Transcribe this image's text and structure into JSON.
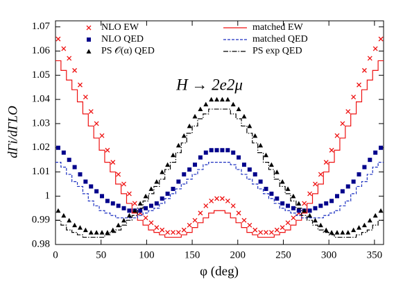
{
  "chart_data": {
    "type": "scatter-step",
    "annotation": "H → 2e2μ",
    "x_label": "φ (deg)",
    "y_label": "dΓi/dΓLO",
    "xlim": [
      0,
      360
    ],
    "ylim": [
      0.98,
      1.0725
    ],
    "xticks": [
      0,
      50,
      100,
      150,
      200,
      250,
      300,
      350
    ],
    "yticks": [
      0.98,
      0.99,
      1,
      1.01,
      1.02,
      1.03,
      1.04,
      1.05,
      1.06,
      1.07
    ],
    "x": [
      3,
      9,
      15,
      21,
      27,
      33,
      39,
      45,
      51,
      57,
      63,
      69,
      75,
      81,
      87,
      93,
      99,
      105,
      111,
      117,
      123,
      129,
      135,
      141,
      147,
      153,
      159,
      165,
      171,
      177,
      183,
      189,
      195,
      201,
      207,
      213,
      219,
      225,
      231,
      237,
      243,
      249,
      255,
      261,
      267,
      273,
      279,
      285,
      291,
      297,
      303,
      309,
      315,
      321,
      327,
      333,
      339,
      345,
      351,
      357
    ],
    "series": [
      {
        "name": "NLO EW",
        "color": "#ee1111",
        "marker": "x",
        "values": [
          1.065,
          1.061,
          1.057,
          1.052,
          1.046,
          1.041,
          1.035,
          1.03,
          1.025,
          1.019,
          1.014,
          1.009,
          1.005,
          1.001,
          0.997,
          0.993,
          0.991,
          0.989,
          0.987,
          0.986,
          0.985,
          0.985,
          0.985,
          0.986,
          0.988,
          0.99,
          0.993,
          0.996,
          0.998,
          0.999,
          0.999,
          0.998,
          0.996,
          0.993,
          0.99,
          0.988,
          0.986,
          0.985,
          0.985,
          0.985,
          0.986,
          0.987,
          0.989,
          0.991,
          0.993,
          0.997,
          1.001,
          1.005,
          1.009,
          1.014,
          1.019,
          1.025,
          1.03,
          1.035,
          1.041,
          1.046,
          1.052,
          1.057,
          1.061,
          1.065
        ]
      },
      {
        "name": "NLO QED",
        "color": "#00008b",
        "marker": "square",
        "values": [
          1.02,
          1.018,
          1.015,
          1.012,
          1.009,
          1.006,
          1.004,
          1.002,
          1.0,
          0.998,
          0.997,
          0.996,
          0.995,
          0.994,
          0.994,
          0.994,
          0.995,
          0.996,
          0.997,
          0.999,
          1.001,
          1.003,
          1.006,
          1.009,
          1.011,
          1.013,
          1.016,
          1.018,
          1.019,
          1.019,
          1.019,
          1.019,
          1.018,
          1.016,
          1.013,
          1.011,
          1.009,
          1.006,
          1.003,
          1.001,
          0.999,
          0.997,
          0.996,
          0.995,
          0.994,
          0.994,
          0.994,
          0.995,
          0.996,
          0.997,
          0.998,
          1.0,
          1.002,
          1.004,
          1.006,
          1.009,
          1.012,
          1.015,
          1.018,
          1.02
        ]
      },
      {
        "name": "PS 𝒪(α) QED",
        "color": "#000000",
        "marker": "triangle",
        "values": [
          0.994,
          0.992,
          0.99,
          0.988,
          0.987,
          0.986,
          0.985,
          0.985,
          0.985,
          0.985,
          0.986,
          0.988,
          0.99,
          0.992,
          0.994,
          0.997,
          1.0,
          1.003,
          1.006,
          1.01,
          1.013,
          1.017,
          1.021,
          1.025,
          1.029,
          1.033,
          1.036,
          1.038,
          1.04,
          1.04,
          1.04,
          1.04,
          1.038,
          1.036,
          1.033,
          1.029,
          1.025,
          1.021,
          1.017,
          1.013,
          1.01,
          1.006,
          1.003,
          1.0,
          0.997,
          0.994,
          0.992,
          0.99,
          0.988,
          0.986,
          0.985,
          0.985,
          0.985,
          0.985,
          0.986,
          0.987,
          0.988,
          0.99,
          0.992,
          0.994
        ]
      },
      {
        "name": "matched EW",
        "color": "#ee1111",
        "style": "solid",
        "values": [
          1.056,
          1.052,
          1.048,
          1.044,
          1.039,
          1.034,
          1.029,
          1.024,
          1.019,
          1.014,
          1.01,
          1.005,
          1.001,
          0.997,
          0.993,
          0.99,
          0.988,
          0.986,
          0.985,
          0.984,
          0.983,
          0.983,
          0.983,
          0.984,
          0.985,
          0.987,
          0.989,
          0.991,
          0.993,
          0.994,
          0.994,
          0.993,
          0.991,
          0.989,
          0.987,
          0.985,
          0.984,
          0.983,
          0.983,
          0.983,
          0.984,
          0.985,
          0.986,
          0.988,
          0.99,
          0.993,
          0.997,
          1.001,
          1.005,
          1.01,
          1.014,
          1.019,
          1.024,
          1.029,
          1.034,
          1.039,
          1.044,
          1.048,
          1.052,
          1.056
        ]
      },
      {
        "name": "matched QED",
        "color": "#1a2fc0",
        "style": "dashed",
        "values": [
          1.014,
          1.012,
          1.009,
          1.006,
          1.004,
          1.001,
          0.998,
          0.996,
          0.994,
          0.993,
          0.992,
          0.991,
          0.991,
          0.991,
          0.991,
          0.992,
          0.993,
          0.994,
          0.995,
          0.997,
          0.999,
          1.001,
          1.003,
          1.005,
          1.007,
          1.009,
          1.011,
          1.013,
          1.014,
          1.014,
          1.014,
          1.014,
          1.013,
          1.011,
          1.009,
          1.007,
          1.005,
          1.003,
          1.001,
          0.999,
          0.997,
          0.995,
          0.994,
          0.993,
          0.992,
          0.991,
          0.991,
          0.991,
          0.991,
          0.992,
          0.993,
          0.994,
          0.996,
          0.998,
          1.001,
          1.004,
          1.006,
          1.009,
          1.012,
          1.014
        ]
      },
      {
        "name": "PS exp QED",
        "color": "#000000",
        "style": "dashdot",
        "values": [
          0.99,
          0.988,
          0.986,
          0.985,
          0.984,
          0.983,
          0.983,
          0.983,
          0.983,
          0.984,
          0.985,
          0.986,
          0.988,
          0.99,
          0.992,
          0.995,
          0.998,
          1.001,
          1.004,
          1.007,
          1.011,
          1.014,
          1.018,
          1.022,
          1.026,
          1.029,
          1.032,
          1.034,
          1.036,
          1.036,
          1.036,
          1.036,
          1.034,
          1.032,
          1.029,
          1.026,
          1.022,
          1.018,
          1.014,
          1.011,
          1.007,
          1.004,
          1.001,
          0.998,
          0.995,
          0.992,
          0.99,
          0.988,
          0.986,
          0.985,
          0.984,
          0.983,
          0.983,
          0.983,
          0.983,
          0.984,
          0.985,
          0.986,
          0.988,
          0.99
        ]
      }
    ]
  }
}
